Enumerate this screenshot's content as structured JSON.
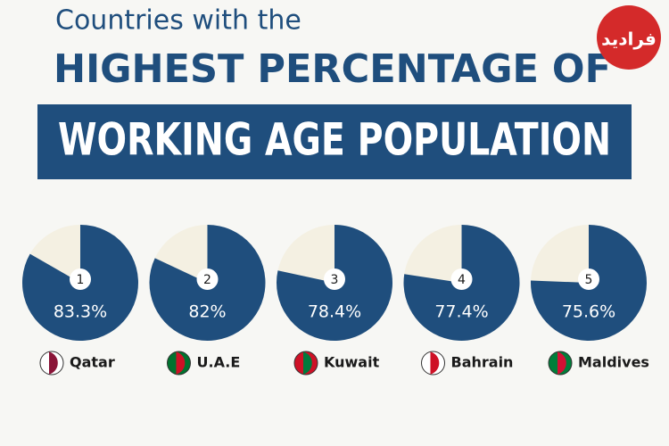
{
  "header": {
    "title_lines": [
      "Countries with the",
      "HIGHEST PERCENTAGE OF",
      "WORKING AGE POPULATION"
    ],
    "logo": "فرادید"
  },
  "chart_data": {
    "type": "pie",
    "categories": [
      "Qatar",
      "U.A.E",
      "Kuwait",
      "Bahrain",
      "Maldives"
    ],
    "ranks": [
      1,
      2,
      3,
      4,
      5
    ],
    "values": [
      83.3,
      82,
      78.4,
      77.4,
      75.6
    ],
    "value_labels": [
      "83.3%",
      "82%",
      "78.4%",
      "77.4%",
      "75.6%"
    ],
    "color": "#1f4e7d",
    "rest_color": "#f4f0e2"
  }
}
